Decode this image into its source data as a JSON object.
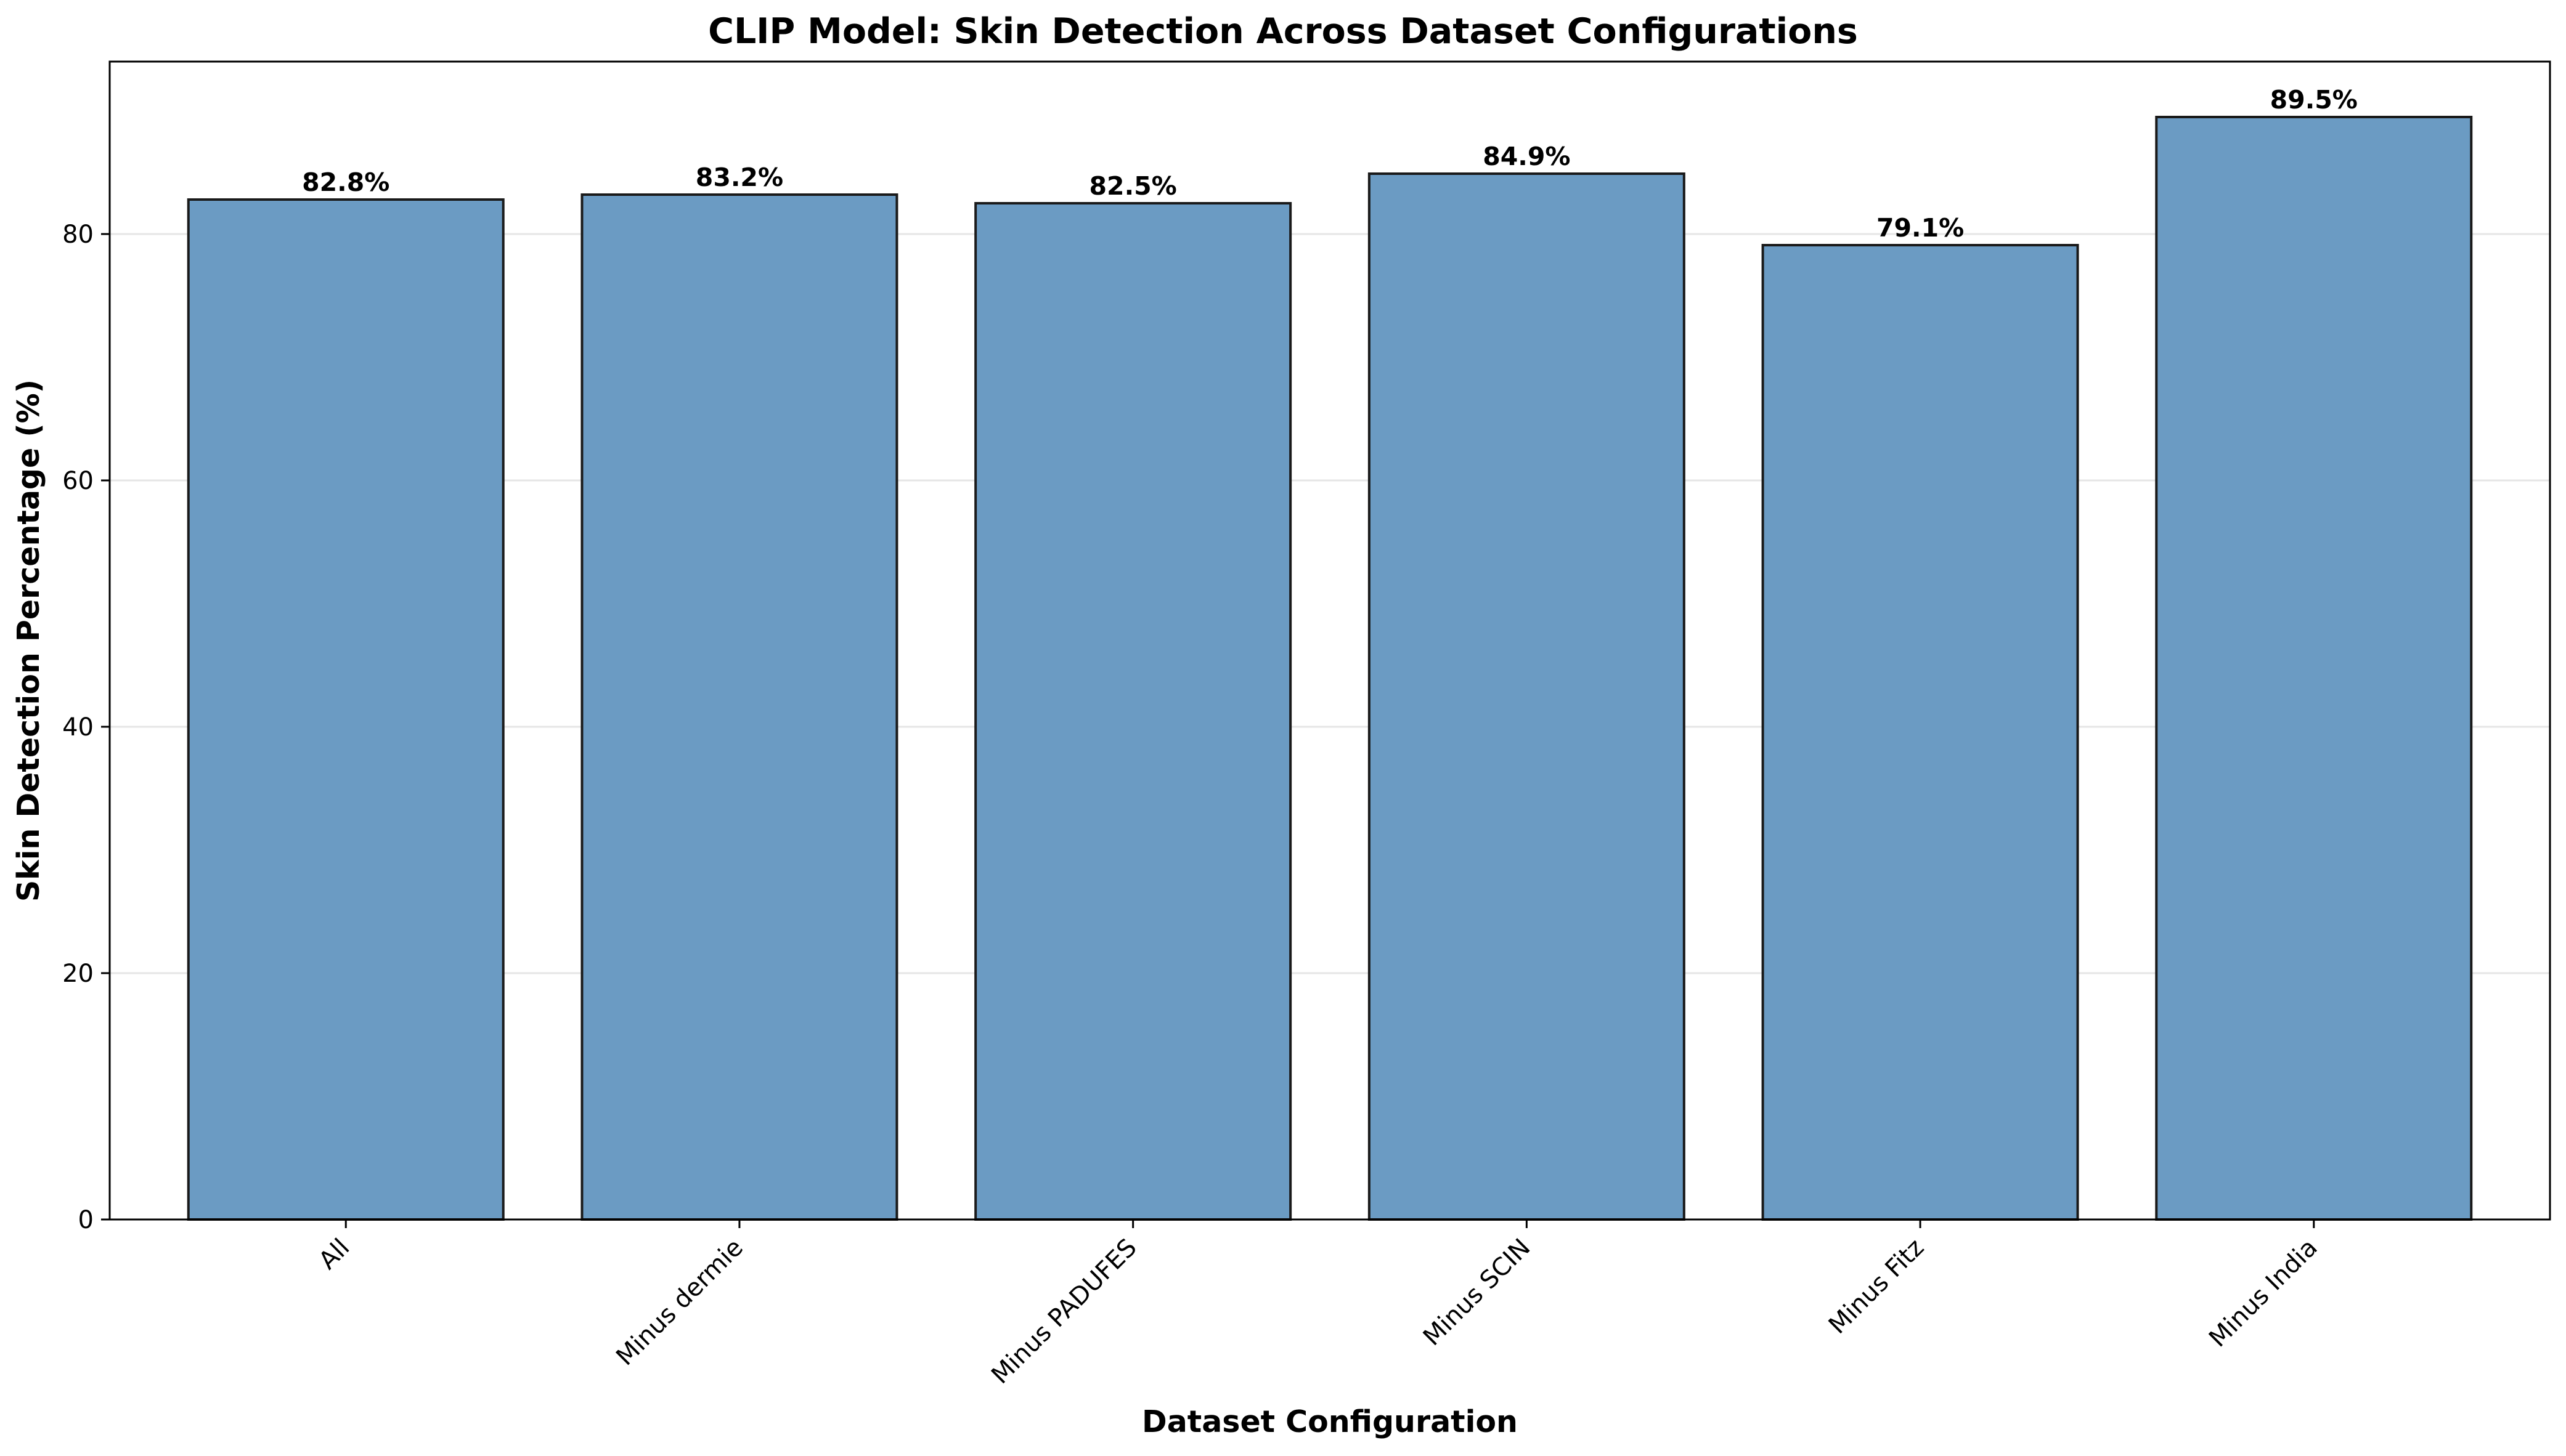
{
  "chart_data": {
    "type": "bar",
    "title": "CLIP Model: Skin Detection Across Dataset Configurations",
    "xlabel": "Dataset Configuration",
    "ylabel": "Skin Detection Percentage (%)",
    "categories": [
      "All",
      "Minus dermie",
      "Minus PADUFES",
      "Minus SCIN",
      "Minus Fitz",
      "Minus India"
    ],
    "values": [
      82.8,
      83.2,
      82.5,
      84.9,
      79.1,
      89.5
    ],
    "value_labels": [
      "82.8%",
      "83.2%",
      "82.5%",
      "84.9%",
      "79.1%",
      "89.5%"
    ],
    "ylim": [
      0,
      94
    ],
    "yticks": [
      0,
      20,
      40,
      60,
      80
    ],
    "ytick_labels": [
      "0",
      "20",
      "40",
      "60",
      "80"
    ],
    "grid": "y-axis, light",
    "legend": "none",
    "colors": {
      "bar_fill": "#6b9bc3",
      "bar_edge": "#1a1a1a",
      "grid": "#e6e6e6",
      "axis": "#000000"
    }
  }
}
